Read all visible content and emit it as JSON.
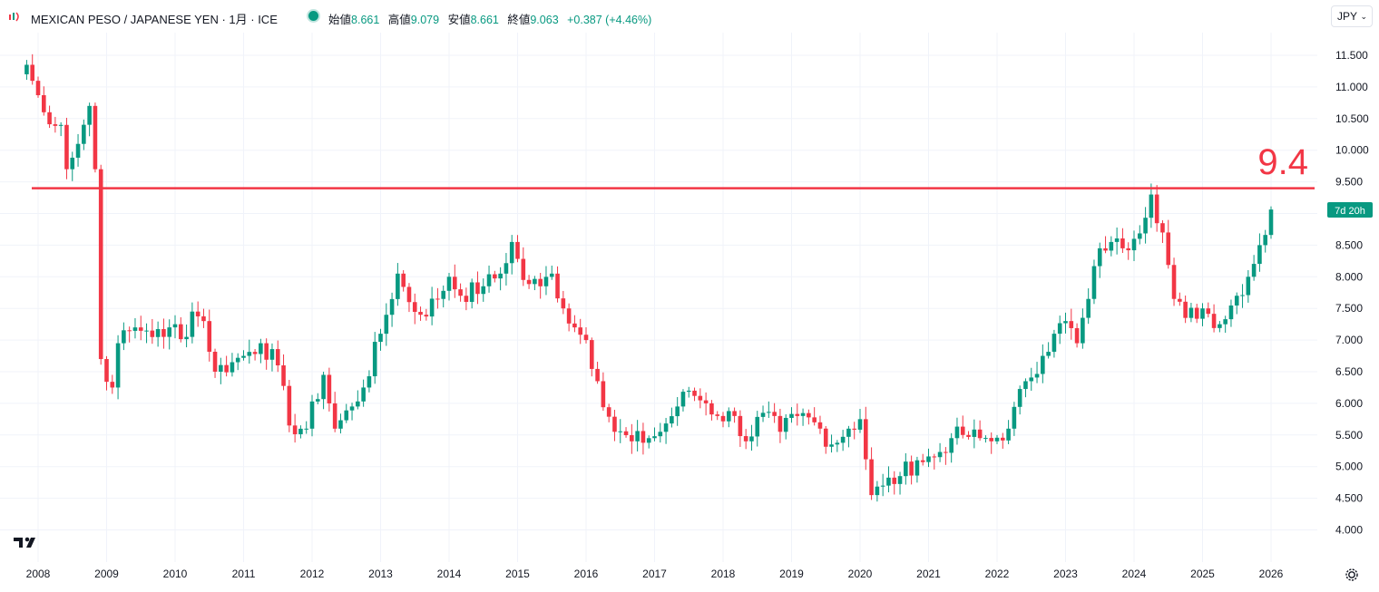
{
  "header": {
    "symbol_title": "MEXICAN PESO / JAPANESE YEN · 1月 · ICE",
    "ohlc": [
      {
        "label": "始値",
        "value": "8.661"
      },
      {
        "label": "高値",
        "value": "9.079"
      },
      {
        "label": "安値",
        "value": "8.661"
      },
      {
        "label": "終値",
        "value": "9.063"
      }
    ],
    "change": "+0.387 (+4.46%)"
  },
  "currency_button": {
    "label": "JPY"
  },
  "countdown_label": "7d 20h",
  "annotation_label": "9.4",
  "colors": {
    "up": "#089981",
    "down": "#f23645",
    "line": "#f23645",
    "grid": "#f0f3fa"
  },
  "icons": {
    "logo": "tradingview-logo-icon",
    "settings": "gear-icon",
    "currency_chevron": "chevron-down-icon"
  },
  "chart_data": {
    "type": "candlestick",
    "interval": "1 month",
    "y_axis": {
      "position": "right",
      "ticks": [
        "11.500",
        "11.000",
        "10.500",
        "10.000",
        "9.500",
        "9.000",
        "8.500",
        "8.000",
        "7.500",
        "7.000",
        "6.500",
        "6.000",
        "5.500",
        "5.000",
        "4.500",
        "4.000"
      ],
      "ylim": [
        4.0,
        11.5
      ]
    },
    "x_axis": {
      "ticks": [
        "2008",
        "2009",
        "2010",
        "2011",
        "2012",
        "2013",
        "2014",
        "2015",
        "2016",
        "2017",
        "2018",
        "2019",
        "2020",
        "2021",
        "2022",
        "2023",
        "2024",
        "2025",
        "2026"
      ]
    },
    "horizontal_line": {
      "value": 9.4
    },
    "last_close": 9.063,
    "anchors": [
      [
        "2007-11",
        11.35
      ],
      [
        "2008-02",
        10.6
      ],
      [
        "2008-05",
        10.4
      ],
      [
        "2008-06",
        9.7
      ],
      [
        "2008-08",
        10.1
      ],
      [
        "2008-10",
        10.7
      ],
      [
        "2008-11",
        9.7
      ],
      [
        "2008-12",
        6.7
      ],
      [
        "2009-02",
        6.25
      ],
      [
        "2009-03",
        6.95
      ],
      [
        "2009-06",
        7.2
      ],
      [
        "2009-08",
        7.15
      ],
      [
        "2009-11",
        7.05
      ],
      [
        "2010-01",
        7.25
      ],
      [
        "2010-03",
        7.05
      ],
      [
        "2010-04",
        7.45
      ],
      [
        "2010-06",
        7.3
      ],
      [
        "2010-08",
        6.5
      ],
      [
        "2010-11",
        6.65
      ],
      [
        "2011-01",
        6.75
      ],
      [
        "2011-04",
        6.95
      ],
      [
        "2011-07",
        6.6
      ],
      [
        "2011-09",
        5.65
      ],
      [
        "2011-12",
        5.6
      ],
      [
        "2012-03",
        6.45
      ],
      [
        "2012-05",
        5.6
      ],
      [
        "2012-08",
        5.95
      ],
      [
        "2012-10",
        6.25
      ],
      [
        "2013-01",
        7.1
      ],
      [
        "2013-04",
        8.05
      ],
      [
        "2013-06",
        7.6
      ],
      [
        "2013-08",
        7.4
      ],
      [
        "2013-11",
        7.65
      ],
      [
        "2014-01",
        8.0
      ],
      [
        "2014-03",
        7.7
      ],
      [
        "2014-07",
        7.85
      ],
      [
        "2014-10",
        8.05
      ],
      [
        "2014-12",
        8.55
      ],
      [
        "2015-02",
        7.95
      ],
      [
        "2015-05",
        7.85
      ],
      [
        "2015-07",
        8.05
      ],
      [
        "2015-09",
        7.5
      ],
      [
        "2015-11",
        7.2
      ],
      [
        "2016-01",
        7.0
      ],
      [
        "2016-03",
        6.35
      ],
      [
        "2016-06",
        5.55
      ],
      [
        "2016-09",
        5.4
      ],
      [
        "2016-12",
        5.45
      ],
      [
        "2017-02",
        5.55
      ],
      [
        "2017-05",
        5.95
      ],
      [
        "2017-07",
        6.2
      ],
      [
        "2017-10",
        6.0
      ],
      [
        "2017-12",
        5.8
      ],
      [
        "2018-03",
        5.8
      ],
      [
        "2018-05",
        5.4
      ],
      [
        "2018-08",
        5.85
      ],
      [
        "2018-11",
        5.55
      ],
      [
        "2019-02",
        5.8
      ],
      [
        "2019-05",
        5.7
      ],
      [
        "2019-08",
        5.35
      ],
      [
        "2019-11",
        5.6
      ],
      [
        "2020-01",
        5.75
      ],
      [
        "2020-03",
        4.55
      ],
      [
        "2020-05",
        4.7
      ],
      [
        "2020-08",
        4.85
      ],
      [
        "2020-11",
        5.1
      ],
      [
        "2021-02",
        5.15
      ],
      [
        "2021-05",
        5.45
      ],
      [
        "2021-07",
        5.5
      ],
      [
        "2021-10",
        5.45
      ],
      [
        "2021-12",
        5.4
      ],
      [
        "2022-03",
        5.6
      ],
      [
        "2022-06",
        6.35
      ],
      [
        "2022-09",
        6.75
      ],
      [
        "2022-11",
        7.1
      ],
      [
        "2023-01",
        7.3
      ],
      [
        "2023-03",
        6.95
      ],
      [
        "2023-05",
        7.65
      ],
      [
        "2023-07",
        8.45
      ],
      [
        "2023-09",
        8.55
      ],
      [
        "2023-11",
        8.45
      ],
      [
        "2024-01",
        8.6
      ],
      [
        "2024-04",
        9.3
      ],
      [
        "2024-06",
        8.7
      ],
      [
        "2024-08",
        7.65
      ],
      [
        "2024-10",
        7.35
      ],
      [
        "2025-01",
        7.5
      ],
      [
        "2025-04",
        7.25
      ],
      [
        "2025-07",
        7.7
      ],
      [
        "2025-09",
        8.0
      ],
      [
        "2025-11",
        8.5
      ],
      [
        "2025-12",
        8.661
      ],
      [
        "2026-01",
        9.063
      ]
    ]
  }
}
